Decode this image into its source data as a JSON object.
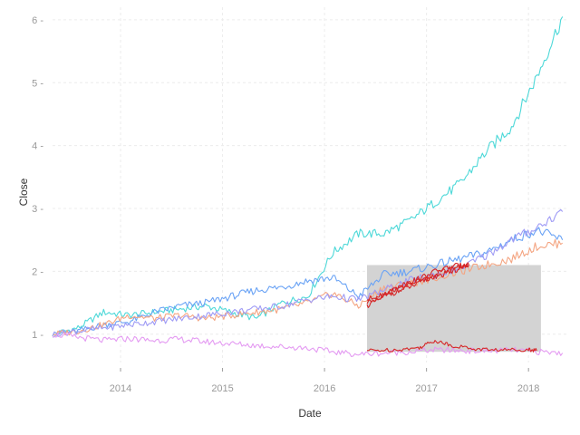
{
  "chart_data": {
    "type": "line",
    "title": "",
    "xlabel": "Date",
    "ylabel": "Close",
    "x_ticks": [
      "2014",
      "2015",
      "2016",
      "2017",
      "2018"
    ],
    "y_ticks": [
      1,
      2,
      3,
      4,
      5,
      6
    ],
    "xlim": [
      "2013-05-01",
      "2018-05-15"
    ],
    "ylim": [
      0.55,
      6.2
    ],
    "grid": true,
    "legend": "none",
    "x_dates": [
      "2013-05",
      "2013-08",
      "2013-11",
      "2014-02",
      "2014-05",
      "2014-08",
      "2014-11",
      "2015-02",
      "2015-05",
      "2015-08",
      "2015-11",
      "2016-02",
      "2016-05",
      "2016-08",
      "2016-11",
      "2017-02",
      "2017-05",
      "2017-08",
      "2017-11",
      "2018-02",
      "2018-05"
    ],
    "series": [
      {
        "color": "#4dd8d8",
        "values": [
          1.0,
          1.1,
          1.35,
          1.3,
          1.35,
          1.4,
          1.45,
          1.35,
          1.25,
          1.5,
          1.6,
          2.3,
          2.6,
          2.6,
          2.8,
          3.1,
          3.4,
          3.9,
          4.3,
          5.1,
          6.05
        ]
      },
      {
        "color": "#6aa3f5",
        "values": [
          1.0,
          1.05,
          1.15,
          1.2,
          1.35,
          1.45,
          1.5,
          1.6,
          1.7,
          1.75,
          1.85,
          1.9,
          1.6,
          1.95,
          2.0,
          2.1,
          2.2,
          2.3,
          2.5,
          2.65,
          2.5
        ]
      },
      {
        "color": "#f4a582",
        "values": [
          1.0,
          1.05,
          1.15,
          1.3,
          1.25,
          1.3,
          1.25,
          1.3,
          1.35,
          1.4,
          1.5,
          1.65,
          1.45,
          1.75,
          1.8,
          1.9,
          2.0,
          2.1,
          2.2,
          2.4,
          2.45
        ]
      },
      {
        "color": "#9f9bf5",
        "values": [
          1.0,
          1.05,
          1.1,
          1.15,
          1.2,
          1.25,
          1.3,
          1.35,
          1.4,
          1.45,
          1.55,
          1.6,
          1.55,
          1.7,
          1.85,
          1.95,
          2.05,
          2.25,
          2.5,
          2.7,
          2.95
        ]
      },
      {
        "color": "#e49bf2",
        "values": [
          1.0,
          0.95,
          0.9,
          0.93,
          0.9,
          0.92,
          0.88,
          0.85,
          0.82,
          0.8,
          0.78,
          0.72,
          0.68,
          0.7,
          0.72,
          0.75,
          0.74,
          0.73,
          0.75,
          0.72,
          0.7
        ]
      }
    ],
    "highlight": {
      "x_range": [
        "2016-06-01",
        "2018-02-15"
      ],
      "y_range": [
        0.72,
        2.1
      ],
      "fill": "#d3d3d3",
      "series_color": "#d62728",
      "series": [
        {
          "x_dates": [
            "2016-06",
            "2016-08",
            "2016-10",
            "2016-12",
            "2017-02",
            "2017-04",
            "2017-06"
          ],
          "values": [
            1.45,
            1.6,
            1.7,
            1.8,
            1.95,
            2.05,
            2.1
          ]
        },
        {
          "x_dates": [
            "2016-06",
            "2016-08",
            "2016-10",
            "2016-12",
            "2017-02",
            "2017-04",
            "2017-06"
          ],
          "values": [
            1.55,
            1.65,
            1.75,
            1.85,
            1.9,
            2.0,
            2.1
          ]
        },
        {
          "x_dates": [
            "2016-06",
            "2016-08",
            "2016-10",
            "2016-12",
            "2017-02",
            "2017-04",
            "2017-06"
          ],
          "values": [
            1.5,
            1.62,
            1.78,
            1.88,
            2.0,
            2.08,
            2.1
          ]
        },
        {
          "x_dates": [
            "2016-06",
            "2016-09",
            "2016-12",
            "2017-02",
            "2017-04",
            "2017-07",
            "2017-10",
            "2018-01",
            "2018-02"
          ],
          "values": [
            0.74,
            0.75,
            0.78,
            0.9,
            0.82,
            0.76,
            0.75,
            0.76,
            0.74
          ]
        }
      ]
    }
  }
}
